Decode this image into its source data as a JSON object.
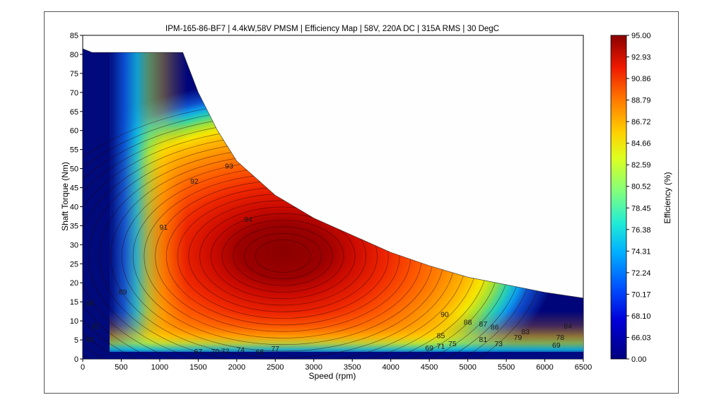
{
  "chart_data": {
    "type": "heatmap",
    "title": "IPM-165-86-BF7 | 4.4kW,58V PMSM | Efficiency Map | 58V, 220A DC | 315A RMS | 30 DegC",
    "xlabel": "Speed  (rpm)",
    "ylabel": "Shaft Torque  (Nm)",
    "colorbar_label": "Efficiency (%)",
    "xlim": [
      0,
      6500
    ],
    "ylim": [
      0,
      85
    ],
    "x_ticks": [
      "0",
      "500",
      "1000",
      "1500",
      "2000",
      "2500",
      "3000",
      "3500",
      "4000",
      "4500",
      "5000",
      "5500",
      "6000",
      "6500"
    ],
    "y_ticks": [
      "0",
      "5",
      "10",
      "15",
      "20",
      "25",
      "30",
      "35",
      "40",
      "45",
      "50",
      "55",
      "60",
      "65",
      "70",
      "75",
      "80",
      "85"
    ],
    "colorbar_ticks": [
      "95.00",
      "92.93",
      "90.86",
      "88.79",
      "86.72",
      "84.66",
      "82.59",
      "80.52",
      "78.45",
      "76.38",
      "74.31",
      "72.24",
      "70.17",
      "68.10",
      "66.03",
      "0.00"
    ],
    "max_torque_envelope": [
      [
        0,
        81.5
      ],
      [
        120,
        80.5
      ],
      [
        1300,
        80.5
      ],
      [
        1500,
        70
      ],
      [
        1750,
        60
      ],
      [
        2000,
        52
      ],
      [
        2500,
        43
      ],
      [
        3000,
        37
      ],
      [
        3500,
        32.5
      ],
      [
        4000,
        28
      ],
      [
        4500,
        24.5
      ],
      [
        5000,
        21.5
      ],
      [
        5500,
        19.5
      ],
      [
        6000,
        17.5
      ],
      [
        6500,
        16
      ]
    ],
    "peak_efficiency_region": {
      "speed_center": 2600,
      "torque_center": 27,
      "efficiency": 95
    },
    "contour_labels": [
      {
        "text": "94",
        "speed": 2150,
        "torque": 36
      },
      {
        "text": "93",
        "speed": 1900,
        "torque": 50
      },
      {
        "text": "92",
        "speed": 1450,
        "torque": 46
      },
      {
        "text": "91",
        "speed": 1050,
        "torque": 34
      },
      {
        "text": "90",
        "speed": 4700,
        "torque": 11
      },
      {
        "text": "89",
        "speed": 520,
        "torque": 17
      },
      {
        "text": "88",
        "speed": 5000,
        "torque": 9
      },
      {
        "text": "87",
        "speed": 5200,
        "torque": 8.5
      },
      {
        "text": "86",
        "speed": 5350,
        "torque": 7.7
      },
      {
        "text": "85",
        "speed": 4650,
        "torque": 5.5
      },
      {
        "text": "84",
        "speed": 6300,
        "torque": 8
      },
      {
        "text": "83",
        "speed": 5750,
        "torque": 6.5
      },
      {
        "text": "82",
        "speed": 170,
        "torque": 8
      },
      {
        "text": "81",
        "speed": 5200,
        "torque": 4.5
      },
      {
        "text": "80",
        "speed": 90,
        "torque": 4.5
      },
      {
        "text": "79",
        "speed": 5650,
        "torque": 5
      },
      {
        "text": "78",
        "speed": 6200,
        "torque": 5
      },
      {
        "text": "77",
        "speed": 2500,
        "torque": 2
      },
      {
        "text": "75",
        "speed": 4800,
        "torque": 3.3
      },
      {
        "text": "74",
        "speed": 2050,
        "torque": 1.8
      },
      {
        "text": "73",
        "speed": 5400,
        "torque": 3.3
      },
      {
        "text": "72",
        "speed": 1850,
        "torque": 1.4
      },
      {
        "text": "71",
        "speed": 4650,
        "torque": 2.7
      },
      {
        "text": "70",
        "speed": 1720,
        "torque": 1.3
      },
      {
        "text": "69",
        "speed": 4500,
        "torque": 2.2
      },
      {
        "text": "69",
        "speed": 6150,
        "torque": 3
      },
      {
        "text": "67",
        "speed": 1500,
        "torque": 1.3
      },
      {
        "text": "66",
        "speed": 2300,
        "torque": 1.2
      },
      {
        "text": "88",
        "speed": 90,
        "torque": 14
      }
    ]
  }
}
